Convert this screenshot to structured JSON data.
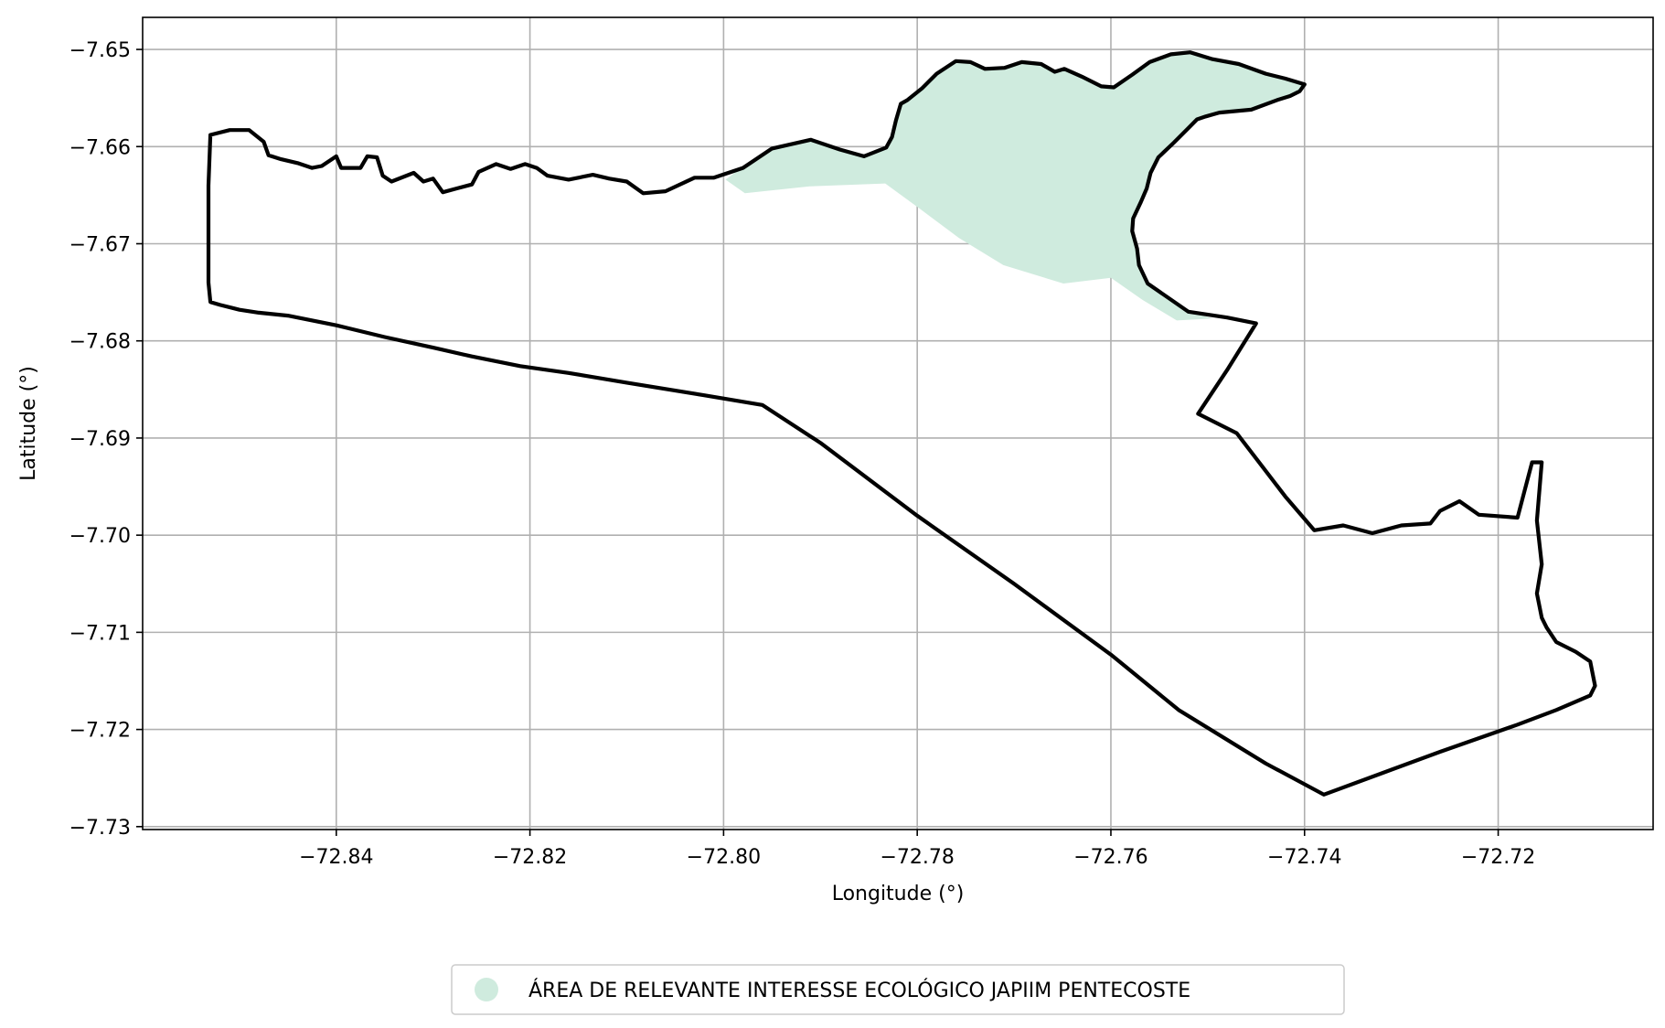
{
  "chart_data": {
    "type": "map",
    "xlabel": "Longitude (°)",
    "ylabel": "Latitude (°)",
    "xlim": [
      -72.86,
      -72.704
    ],
    "ylim": [
      -7.7303,
      -7.6467
    ],
    "grid": true,
    "x_ticks": [
      {
        "value": -72.84,
        "label": "−72.84"
      },
      {
        "value": -72.82,
        "label": "−72.82"
      },
      {
        "value": -72.8,
        "label": "−72.80"
      },
      {
        "value": -72.78,
        "label": "−72.78"
      },
      {
        "value": -72.76,
        "label": "−72.76"
      },
      {
        "value": -72.74,
        "label": "−72.74"
      },
      {
        "value": -72.72,
        "label": "−72.72"
      }
    ],
    "y_ticks": [
      {
        "value": -7.65,
        "label": "−7.65"
      },
      {
        "value": -7.66,
        "label": "−7.66"
      },
      {
        "value": -7.67,
        "label": "−7.67"
      },
      {
        "value": -7.68,
        "label": "−7.68"
      },
      {
        "value": -7.69,
        "label": "−7.69"
      },
      {
        "value": -7.7,
        "label": "−7.70"
      },
      {
        "value": -7.71,
        "label": "−7.71"
      },
      {
        "value": -7.72,
        "label": "−7.72"
      },
      {
        "value": -7.73,
        "label": "−7.73"
      }
    ],
    "legend_position": "bottom-center",
    "protected_area": {
      "name": "ÁREA DE RELEVANTE INTERESSE ECOLÓGICO JAPIIM PENTECOSTE",
      "color": "#cfebde",
      "coordinates": [
        [
          -72.7998,
          -7.6634
        ],
        [
          -72.7978,
          -7.6648
        ],
        [
          -72.7911,
          -7.6641
        ],
        [
          -72.7833,
          -7.6638
        ],
        [
          -72.7796,
          -7.6665
        ],
        [
          -72.7757,
          -7.6694
        ],
        [
          -72.7711,
          -7.6722
        ],
        [
          -72.7649,
          -7.6741
        ],
        [
          -72.76,
          -7.6735
        ],
        [
          -72.7567,
          -7.6758
        ],
        [
          -72.7532,
          -7.6779
        ],
        [
          -72.7495,
          -7.6777
        ],
        [
          -72.7515,
          -7.6771
        ],
        [
          -72.7562,
          -7.6741
        ],
        [
          -72.7571,
          -7.6722
        ],
        [
          -72.7573,
          -7.6705
        ],
        [
          -72.7578,
          -7.6687
        ],
        [
          -72.7577,
          -7.6674
        ],
        [
          -72.7569,
          -7.6657
        ],
        [
          -72.7563,
          -7.6643
        ],
        [
          -72.7559,
          -7.6627
        ],
        [
          -72.7551,
          -7.6611
        ],
        [
          -72.7535,
          -7.6596
        ],
        [
          -72.7519,
          -7.658
        ],
        [
          -72.7511,
          -7.6572
        ],
        [
          -72.7502,
          -7.6569
        ],
        [
          -72.7488,
          -7.6565
        ],
        [
          -72.7455,
          -7.6562
        ],
        [
          -72.7428,
          -7.6552
        ],
        [
          -72.7415,
          -7.6548
        ],
        [
          -72.7405,
          -7.6543
        ],
        [
          -72.74,
          -7.6536
        ],
        [
          -72.742,
          -7.653
        ],
        [
          -72.744,
          -7.6525
        ],
        [
          -72.7468,
          -7.6515
        ],
        [
          -72.7495,
          -7.651
        ],
        [
          -72.7518,
          -7.6503
        ],
        [
          -72.7538,
          -7.6505
        ],
        [
          -72.756,
          -7.6513
        ],
        [
          -72.7578,
          -7.6526
        ],
        [
          -72.7597,
          -7.6539
        ],
        [
          -72.761,
          -7.6538
        ],
        [
          -72.763,
          -7.6528
        ],
        [
          -72.7648,
          -7.652
        ],
        [
          -72.7658,
          -7.6523
        ],
        [
          -72.7672,
          -7.6515
        ],
        [
          -72.7692,
          -7.6513
        ],
        [
          -72.771,
          -7.6519
        ],
        [
          -72.773,
          -7.652
        ],
        [
          -72.7745,
          -7.6513
        ],
        [
          -72.776,
          -7.6512
        ],
        [
          -72.778,
          -7.6525
        ],
        [
          -72.7795,
          -7.654
        ],
        [
          -72.781,
          -7.6552
        ],
        [
          -72.7817,
          -7.6556
        ],
        [
          -72.7822,
          -7.6573
        ],
        [
          -72.7826,
          -7.659
        ],
        [
          -72.7832,
          -7.6601
        ],
        [
          -72.7855,
          -7.661
        ],
        [
          -72.788,
          -7.6603
        ],
        [
          -72.791,
          -7.6593
        ],
        [
          -72.795,
          -7.6603
        ],
        [
          -72.7975,
          -7.6617
        ],
        [
          -72.7998,
          -7.6634
        ]
      ]
    },
    "boundary": {
      "coordinates": [
        [
          -72.853,
          -7.6588
        ],
        [
          -72.851,
          -7.6583
        ],
        [
          -72.849,
          -7.6583
        ],
        [
          -72.8475,
          -7.6595
        ],
        [
          -72.847,
          -7.6609
        ],
        [
          -72.8457,
          -7.6613
        ],
        [
          -72.844,
          -7.6617
        ],
        [
          -72.8425,
          -7.6622
        ],
        [
          -72.8415,
          -7.662
        ],
        [
          -72.84,
          -7.661
        ],
        [
          -72.8395,
          -7.6622
        ],
        [
          -72.8375,
          -7.6622
        ],
        [
          -72.8368,
          -7.661
        ],
        [
          -72.8358,
          -7.6611
        ],
        [
          -72.8352,
          -7.663
        ],
        [
          -72.8343,
          -7.6636
        ],
        [
          -72.832,
          -7.6627
        ],
        [
          -72.831,
          -7.6636
        ],
        [
          -72.83,
          -7.6633
        ],
        [
          -72.829,
          -7.6647
        ],
        [
          -72.8275,
          -7.6643
        ],
        [
          -72.826,
          -7.6639
        ],
        [
          -72.8253,
          -7.6626
        ],
        [
          -72.8235,
          -7.6618
        ],
        [
          -72.822,
          -7.6623
        ],
        [
          -72.8205,
          -7.6618
        ],
        [
          -72.8193,
          -7.6622
        ],
        [
          -72.8182,
          -7.663
        ],
        [
          -72.816,
          -7.6634
        ],
        [
          -72.8135,
          -7.6629
        ],
        [
          -72.8118,
          -7.6633
        ],
        [
          -72.81,
          -7.6636
        ],
        [
          -72.8083,
          -7.6648
        ],
        [
          -72.806,
          -7.6646
        ],
        [
          -72.803,
          -7.6632
        ],
        [
          -72.801,
          -7.6632
        ],
        [
          -72.798,
          -7.6622
        ],
        [
          -72.795,
          -7.6602
        ],
        [
          -72.791,
          -7.6593
        ],
        [
          -72.788,
          -7.6603
        ],
        [
          -72.7855,
          -7.661
        ],
        [
          -72.7832,
          -7.6601
        ],
        [
          -72.7826,
          -7.659
        ],
        [
          -72.7822,
          -7.6573
        ],
        [
          -72.7817,
          -7.6556
        ],
        [
          -72.781,
          -7.6552
        ],
        [
          -72.7795,
          -7.654
        ],
        [
          -72.778,
          -7.6525
        ],
        [
          -72.776,
          -7.6512
        ],
        [
          -72.7745,
          -7.6513
        ],
        [
          -72.773,
          -7.652
        ],
        [
          -72.771,
          -7.6519
        ],
        [
          -72.7692,
          -7.6513
        ],
        [
          -72.7672,
          -7.6515
        ],
        [
          -72.7658,
          -7.6523
        ],
        [
          -72.7648,
          -7.652
        ],
        [
          -72.763,
          -7.6528
        ],
        [
          -72.761,
          -7.6538
        ],
        [
          -72.7597,
          -7.6539
        ],
        [
          -72.7578,
          -7.6526
        ],
        [
          -72.756,
          -7.6513
        ],
        [
          -72.7538,
          -7.6505
        ],
        [
          -72.7518,
          -7.6503
        ],
        [
          -72.7495,
          -7.651
        ],
        [
          -72.7468,
          -7.6515
        ],
        [
          -72.744,
          -7.6525
        ],
        [
          -72.742,
          -7.653
        ],
        [
          -72.74,
          -7.6536
        ],
        [
          -72.7405,
          -7.6543
        ],
        [
          -72.7415,
          -7.6548
        ],
        [
          -72.7428,
          -7.6552
        ],
        [
          -72.7455,
          -7.6562
        ],
        [
          -72.7488,
          -7.6565
        ],
        [
          -72.7502,
          -7.6569
        ],
        [
          -72.7511,
          -7.6572
        ],
        [
          -72.7519,
          -7.658
        ],
        [
          -72.7535,
          -7.6596
        ],
        [
          -72.7551,
          -7.6611
        ],
        [
          -72.7559,
          -7.6627
        ],
        [
          -72.7563,
          -7.6643
        ],
        [
          -72.7569,
          -7.6657
        ],
        [
          -72.7577,
          -7.6674
        ],
        [
          -72.7578,
          -7.6687
        ],
        [
          -72.7573,
          -7.6705
        ],
        [
          -72.7571,
          -7.6722
        ],
        [
          -72.7562,
          -7.6741
        ],
        [
          -72.752,
          -7.677
        ],
        [
          -72.748,
          -7.6776
        ],
        [
          -72.745,
          -7.6782
        ],
        [
          -72.748,
          -7.683
        ],
        [
          -72.751,
          -7.6875
        ],
        [
          -72.747,
          -7.6895
        ],
        [
          -72.742,
          -7.696
        ],
        [
          -72.739,
          -7.6995
        ],
        [
          -72.736,
          -7.699
        ],
        [
          -72.733,
          -7.6998
        ],
        [
          -72.73,
          -7.699
        ],
        [
          -72.727,
          -7.6988
        ],
        [
          -72.726,
          -7.6975
        ],
        [
          -72.724,
          -7.6965
        ],
        [
          -72.722,
          -7.6979
        ],
        [
          -72.718,
          -7.6982
        ],
        [
          -72.7165,
          -7.6925
        ],
        [
          -72.7155,
          -7.6925
        ],
        [
          -72.716,
          -7.6985
        ],
        [
          -72.7155,
          -7.703
        ],
        [
          -72.716,
          -7.706
        ],
        [
          -72.7155,
          -7.7085
        ],
        [
          -72.715,
          -7.7095
        ],
        [
          -72.714,
          -7.711
        ],
        [
          -72.712,
          -7.712
        ],
        [
          -72.7105,
          -7.713
        ],
        [
          -72.71,
          -7.7155
        ],
        [
          -72.7105,
          -7.7165
        ],
        [
          -72.714,
          -7.718
        ],
        [
          -72.718,
          -7.7195
        ],
        [
          -72.726,
          -7.7223
        ],
        [
          -72.732,
          -7.7245
        ],
        [
          -72.738,
          -7.7267
        ],
        [
          -72.744,
          -7.7235
        ],
        [
          -72.753,
          -7.718
        ],
        [
          -72.76,
          -7.7123
        ],
        [
          -72.77,
          -7.705
        ],
        [
          -72.78,
          -7.698
        ],
        [
          -72.79,
          -7.6905
        ],
        [
          -72.796,
          -7.6866
        ],
        [
          -72.802,
          -7.6856
        ],
        [
          -72.81,
          -7.6843
        ],
        [
          -72.816,
          -7.6833
        ],
        [
          -72.821,
          -7.6826
        ],
        [
          -72.826,
          -7.6816
        ],
        [
          -72.83,
          -7.6807
        ],
        [
          -72.835,
          -7.6796
        ],
        [
          -72.84,
          -7.6784
        ],
        [
          -72.845,
          -7.6774
        ],
        [
          -72.848,
          -7.6771
        ],
        [
          -72.85,
          -7.6768
        ],
        [
          -72.852,
          -7.6763
        ],
        [
          -72.853,
          -7.676
        ],
        [
          -72.8532,
          -7.674
        ],
        [
          -72.8532,
          -7.664
        ],
        [
          -72.853,
          -7.6588
        ]
      ]
    }
  }
}
